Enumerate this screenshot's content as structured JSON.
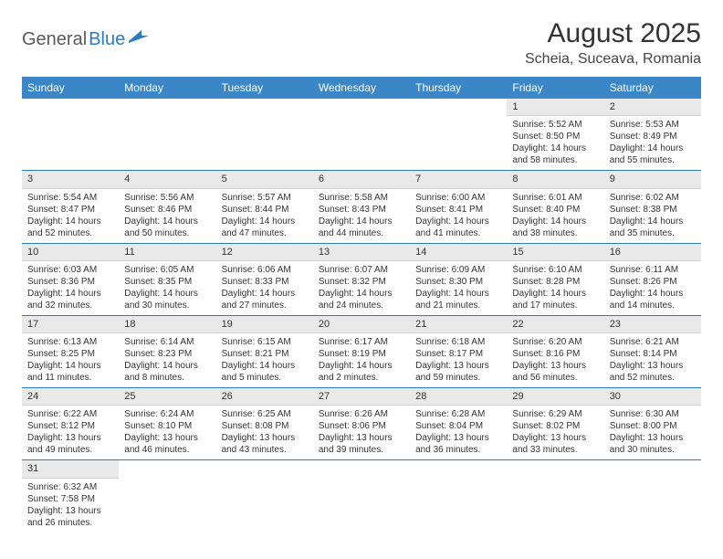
{
  "logo": {
    "text1": "General",
    "text2": "Blue"
  },
  "title": "August 2025",
  "location": "Scheia, Suceava, Romania",
  "colors": {
    "header_bg": "#3b86c6",
    "header_text": "#ffffff",
    "daynum_bg": "#e9e9e9",
    "rule": "#2a7cc4",
    "logo_gray": "#5a5a5a",
    "logo_blue": "#2a7cc4"
  },
  "weekdays": [
    "Sunday",
    "Monday",
    "Tuesday",
    "Wednesday",
    "Thursday",
    "Friday",
    "Saturday"
  ],
  "weeks": [
    [
      null,
      null,
      null,
      null,
      null,
      {
        "n": "1",
        "sr": "Sunrise: 5:52 AM",
        "ss": "Sunset: 8:50 PM",
        "d1": "Daylight: 14 hours",
        "d2": "and 58 minutes."
      },
      {
        "n": "2",
        "sr": "Sunrise: 5:53 AM",
        "ss": "Sunset: 8:49 PM",
        "d1": "Daylight: 14 hours",
        "d2": "and 55 minutes."
      }
    ],
    [
      {
        "n": "3",
        "sr": "Sunrise: 5:54 AM",
        "ss": "Sunset: 8:47 PM",
        "d1": "Daylight: 14 hours",
        "d2": "and 52 minutes."
      },
      {
        "n": "4",
        "sr": "Sunrise: 5:56 AM",
        "ss": "Sunset: 8:46 PM",
        "d1": "Daylight: 14 hours",
        "d2": "and 50 minutes."
      },
      {
        "n": "5",
        "sr": "Sunrise: 5:57 AM",
        "ss": "Sunset: 8:44 PM",
        "d1": "Daylight: 14 hours",
        "d2": "and 47 minutes."
      },
      {
        "n": "6",
        "sr": "Sunrise: 5:58 AM",
        "ss": "Sunset: 8:43 PM",
        "d1": "Daylight: 14 hours",
        "d2": "and 44 minutes."
      },
      {
        "n": "7",
        "sr": "Sunrise: 6:00 AM",
        "ss": "Sunset: 8:41 PM",
        "d1": "Daylight: 14 hours",
        "d2": "and 41 minutes."
      },
      {
        "n": "8",
        "sr": "Sunrise: 6:01 AM",
        "ss": "Sunset: 8:40 PM",
        "d1": "Daylight: 14 hours",
        "d2": "and 38 minutes."
      },
      {
        "n": "9",
        "sr": "Sunrise: 6:02 AM",
        "ss": "Sunset: 8:38 PM",
        "d1": "Daylight: 14 hours",
        "d2": "and 35 minutes."
      }
    ],
    [
      {
        "n": "10",
        "sr": "Sunrise: 6:03 AM",
        "ss": "Sunset: 8:36 PM",
        "d1": "Daylight: 14 hours",
        "d2": "and 32 minutes."
      },
      {
        "n": "11",
        "sr": "Sunrise: 6:05 AM",
        "ss": "Sunset: 8:35 PM",
        "d1": "Daylight: 14 hours",
        "d2": "and 30 minutes."
      },
      {
        "n": "12",
        "sr": "Sunrise: 6:06 AM",
        "ss": "Sunset: 8:33 PM",
        "d1": "Daylight: 14 hours",
        "d2": "and 27 minutes."
      },
      {
        "n": "13",
        "sr": "Sunrise: 6:07 AM",
        "ss": "Sunset: 8:32 PM",
        "d1": "Daylight: 14 hours",
        "d2": "and 24 minutes."
      },
      {
        "n": "14",
        "sr": "Sunrise: 6:09 AM",
        "ss": "Sunset: 8:30 PM",
        "d1": "Daylight: 14 hours",
        "d2": "and 21 minutes."
      },
      {
        "n": "15",
        "sr": "Sunrise: 6:10 AM",
        "ss": "Sunset: 8:28 PM",
        "d1": "Daylight: 14 hours",
        "d2": "and 17 minutes."
      },
      {
        "n": "16",
        "sr": "Sunrise: 6:11 AM",
        "ss": "Sunset: 8:26 PM",
        "d1": "Daylight: 14 hours",
        "d2": "and 14 minutes."
      }
    ],
    [
      {
        "n": "17",
        "sr": "Sunrise: 6:13 AM",
        "ss": "Sunset: 8:25 PM",
        "d1": "Daylight: 14 hours",
        "d2": "and 11 minutes."
      },
      {
        "n": "18",
        "sr": "Sunrise: 6:14 AM",
        "ss": "Sunset: 8:23 PM",
        "d1": "Daylight: 14 hours",
        "d2": "and 8 minutes."
      },
      {
        "n": "19",
        "sr": "Sunrise: 6:15 AM",
        "ss": "Sunset: 8:21 PM",
        "d1": "Daylight: 14 hours",
        "d2": "and 5 minutes."
      },
      {
        "n": "20",
        "sr": "Sunrise: 6:17 AM",
        "ss": "Sunset: 8:19 PM",
        "d1": "Daylight: 14 hours",
        "d2": "and 2 minutes."
      },
      {
        "n": "21",
        "sr": "Sunrise: 6:18 AM",
        "ss": "Sunset: 8:17 PM",
        "d1": "Daylight: 13 hours",
        "d2": "and 59 minutes."
      },
      {
        "n": "22",
        "sr": "Sunrise: 6:20 AM",
        "ss": "Sunset: 8:16 PM",
        "d1": "Daylight: 13 hours",
        "d2": "and 56 minutes."
      },
      {
        "n": "23",
        "sr": "Sunrise: 6:21 AM",
        "ss": "Sunset: 8:14 PM",
        "d1": "Daylight: 13 hours",
        "d2": "and 52 minutes."
      }
    ],
    [
      {
        "n": "24",
        "sr": "Sunrise: 6:22 AM",
        "ss": "Sunset: 8:12 PM",
        "d1": "Daylight: 13 hours",
        "d2": "and 49 minutes."
      },
      {
        "n": "25",
        "sr": "Sunrise: 6:24 AM",
        "ss": "Sunset: 8:10 PM",
        "d1": "Daylight: 13 hours",
        "d2": "and 46 minutes."
      },
      {
        "n": "26",
        "sr": "Sunrise: 6:25 AM",
        "ss": "Sunset: 8:08 PM",
        "d1": "Daylight: 13 hours",
        "d2": "and 43 minutes."
      },
      {
        "n": "27",
        "sr": "Sunrise: 6:26 AM",
        "ss": "Sunset: 8:06 PM",
        "d1": "Daylight: 13 hours",
        "d2": "and 39 minutes."
      },
      {
        "n": "28",
        "sr": "Sunrise: 6:28 AM",
        "ss": "Sunset: 8:04 PM",
        "d1": "Daylight: 13 hours",
        "d2": "and 36 minutes."
      },
      {
        "n": "29",
        "sr": "Sunrise: 6:29 AM",
        "ss": "Sunset: 8:02 PM",
        "d1": "Daylight: 13 hours",
        "d2": "and 33 minutes."
      },
      {
        "n": "30",
        "sr": "Sunrise: 6:30 AM",
        "ss": "Sunset: 8:00 PM",
        "d1": "Daylight: 13 hours",
        "d2": "and 30 minutes."
      }
    ],
    [
      {
        "n": "31",
        "sr": "Sunrise: 6:32 AM",
        "ss": "Sunset: 7:58 PM",
        "d1": "Daylight: 13 hours",
        "d2": "and 26 minutes."
      },
      null,
      null,
      null,
      null,
      null,
      null
    ]
  ]
}
